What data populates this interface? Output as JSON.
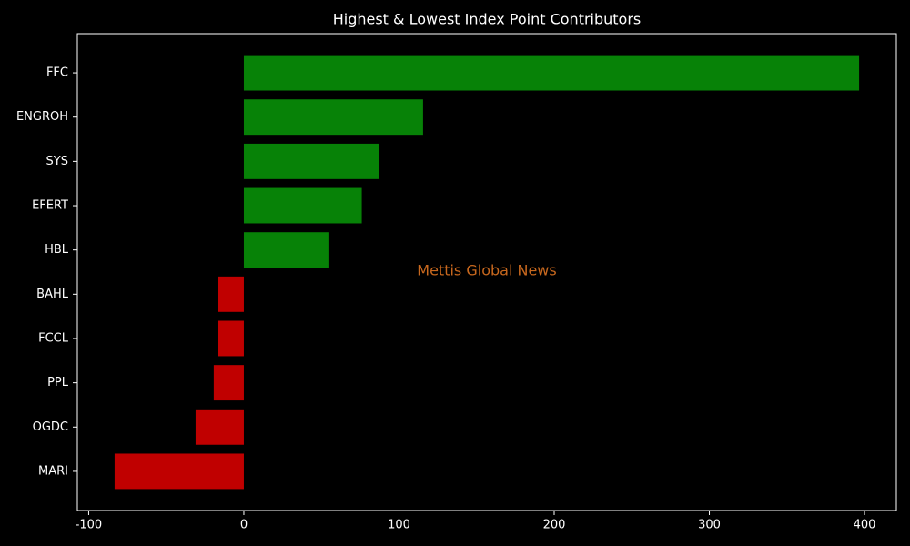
{
  "chart_data": {
    "type": "barh",
    "title": "Highest & Lowest Index Point Contributors",
    "annotation": "Mettis Global News",
    "categories": [
      "FFC",
      "ENGROH",
      "SYS",
      "EFERT",
      "HBL",
      "BAHL",
      "FCCL",
      "PPL",
      "OGDC",
      "MARI"
    ],
    "values": [
      396.5,
      115.5,
      87,
      76,
      54.5,
      -16.4,
      -16.4,
      -19.4,
      -31.1,
      -83.3
    ],
    "colors": [
      "#078207",
      "#078207",
      "#078207",
      "#078207",
      "#078207",
      "#c00000",
      "#c00000",
      "#c00000",
      "#c00000",
      "#c00000"
    ],
    "xlim": [
      -107.3,
      420.5
    ],
    "xticks": [
      -100,
      0,
      100,
      200,
      300,
      400
    ],
    "grid": false
  }
}
